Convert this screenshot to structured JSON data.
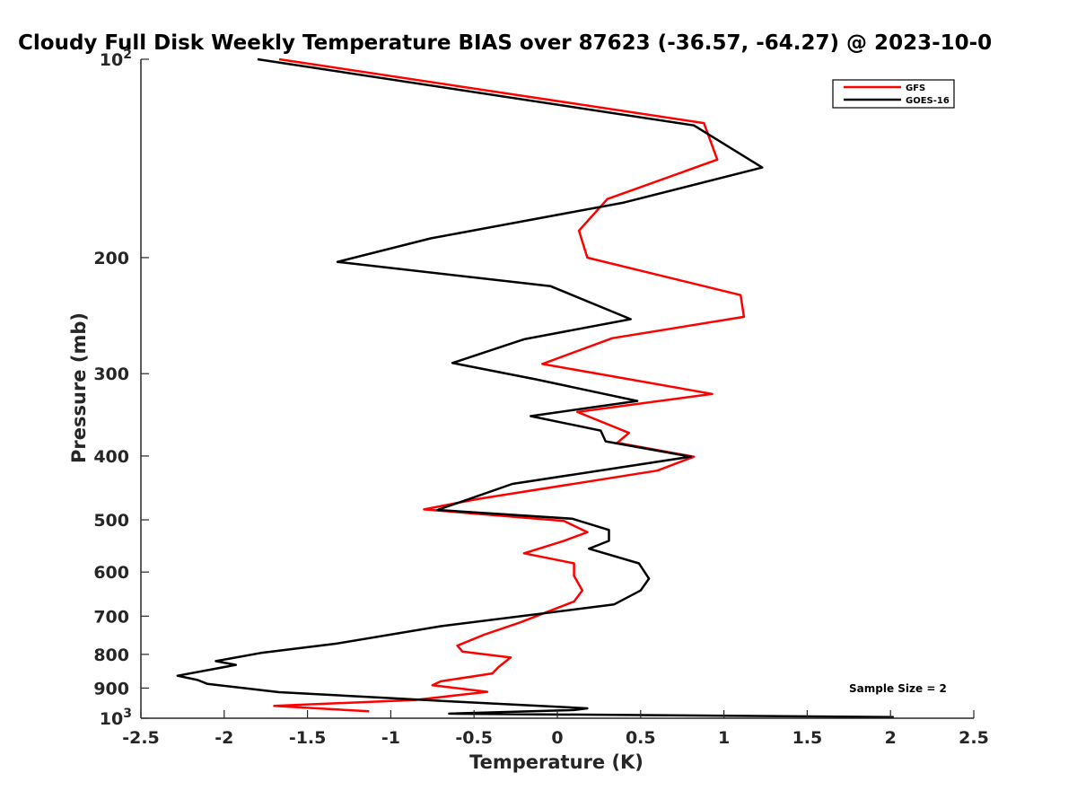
{
  "chart_data": {
    "type": "line",
    "title": "Cloudy Full Disk Weekly Temperature BIAS over 87623 (-36.57, -64.27) @ 2023-10-0",
    "xlabel": "Temperature (K)",
    "ylabel": "Pressure (mb)",
    "xlim": [
      -2.5,
      2.5
    ],
    "ylim": [
      100,
      1000
    ],
    "y_scale": "log",
    "y_reversed": true,
    "x_ticks": [
      "-2.5",
      "-2",
      "-1.5",
      "-1",
      "-0.5",
      "0",
      "0.5",
      "1",
      "1.5",
      "2",
      "2.5"
    ],
    "y_ticks": [
      {
        "value": 100,
        "base": "10",
        "exp": "2"
      },
      {
        "value": 200,
        "label": "200"
      },
      {
        "value": 300,
        "label": "300"
      },
      {
        "value": 400,
        "label": "400"
      },
      {
        "value": 500,
        "label": "500"
      },
      {
        "value": 600,
        "label": "600"
      },
      {
        "value": 700,
        "label": "700"
      },
      {
        "value": 800,
        "label": "800"
      },
      {
        "value": 900,
        "label": "900"
      },
      {
        "value": 1000,
        "base": "10",
        "exp": "3"
      }
    ],
    "grid": false,
    "legend": "top-right",
    "annotation": "Sample Size = 2",
    "series": [
      {
        "name": "GFS",
        "color": "#ff0000",
        "points": [
          [
            -1.67,
            100
          ],
          [
            0.88,
            125
          ],
          [
            0.96,
            142
          ],
          [
            0.3,
            163
          ],
          [
            0.13,
            182
          ],
          [
            0.18,
            200
          ],
          [
            1.1,
            228
          ],
          [
            1.12,
            246
          ],
          [
            0.33,
            265
          ],
          [
            -0.09,
            290
          ],
          [
            0.93,
            322
          ],
          [
            0.12,
            343
          ],
          [
            0.43,
            369
          ],
          [
            0.36,
            382
          ],
          [
            0.82,
            401
          ],
          [
            0.6,
            421
          ],
          [
            -0.48,
            465
          ],
          [
            -0.8,
            482
          ],
          [
            0.04,
            502
          ],
          [
            0.18,
            522
          ],
          [
            0.04,
            538
          ],
          [
            -0.2,
            562
          ],
          [
            0.1,
            582
          ],
          [
            0.1,
            608
          ],
          [
            0.15,
            640
          ],
          [
            0.1,
            665
          ],
          [
            -0.22,
            715
          ],
          [
            -0.44,
            747
          ],
          [
            -0.6,
            776
          ],
          [
            -0.57,
            792
          ],
          [
            -0.28,
            809
          ],
          [
            -0.35,
            835
          ],
          [
            -0.39,
            855
          ],
          [
            -0.7,
            879
          ],
          [
            -0.75,
            891
          ],
          [
            -0.42,
            912
          ],
          [
            -0.85,
            938
          ],
          [
            -1.7,
            958
          ],
          [
            -1.13,
            976
          ]
        ]
      },
      {
        "name": "GOES-16",
        "color": "#000000",
        "points": [
          [
            -1.8,
            100
          ],
          [
            0.82,
            126
          ],
          [
            1.23,
            146
          ],
          [
            0.4,
            165
          ],
          [
            -0.76,
            187
          ],
          [
            -1.32,
            203
          ],
          [
            -0.04,
            221
          ],
          [
            0.44,
            248
          ],
          [
            -0.2,
            266
          ],
          [
            -0.63,
            289
          ],
          [
            -0.13,
            306
          ],
          [
            0.48,
            330
          ],
          [
            -0.16,
            348
          ],
          [
            0.26,
            366
          ],
          [
            0.29,
            380
          ],
          [
            0.8,
            401
          ],
          [
            -0.27,
            441
          ],
          [
            -0.52,
            464
          ],
          [
            -0.72,
            483
          ],
          [
            0.09,
            498
          ],
          [
            0.31,
            518
          ],
          [
            0.31,
            538
          ],
          [
            0.19,
            553
          ],
          [
            0.49,
            582
          ],
          [
            0.55,
            614
          ],
          [
            0.5,
            640
          ],
          [
            0.34,
            672
          ],
          [
            -0.7,
            725
          ],
          [
            -1.32,
            770
          ],
          [
            -1.78,
            796
          ],
          [
            -2.05,
            819
          ],
          [
            -1.93,
            830
          ],
          [
            -2.28,
            862
          ],
          [
            -2.16,
            875
          ],
          [
            -2.1,
            887
          ],
          [
            -1.67,
            913
          ],
          [
            -1.0,
            932
          ],
          [
            -0.6,
            944
          ],
          [
            0.18,
            966
          ],
          [
            0.1,
            972
          ],
          [
            -0.65,
            984
          ],
          [
            2.02,
            996
          ]
        ]
      }
    ]
  }
}
